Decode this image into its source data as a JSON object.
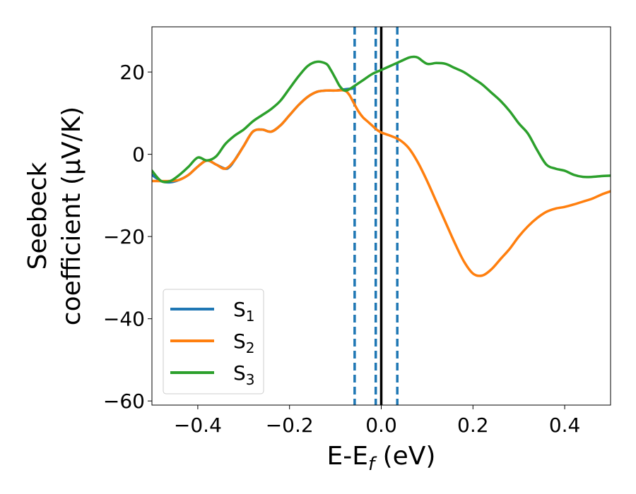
{
  "chart_data": {
    "type": "line",
    "xlabel": "E-E",
    "xlabel_sub": "f",
    "xlabel_suffix": " (eV)",
    "ylabel_line1": "Seebeck",
    "ylabel_line2": "coefficient  (μV/K)",
    "xlim": [
      -0.5,
      0.5
    ],
    "ylim": [
      -61,
      31
    ],
    "xticks": [
      -0.4,
      -0.2,
      0.0,
      0.2,
      0.4
    ],
    "xtick_labels": [
      "−0.4",
      "−0.2",
      "0.0",
      "0.2",
      "0.4"
    ],
    "yticks": [
      -60,
      -40,
      -20,
      0,
      20
    ],
    "ytick_labels": [
      "−60",
      "−40",
      "−20",
      "0",
      "20"
    ],
    "grid": false,
    "legend_position": "lower-left",
    "vlines_dashed": [
      -0.058,
      -0.012,
      0.035
    ],
    "vline_solid": 0.0,
    "vline_dashed_color": "#1f77b4",
    "vline_solid_color": "#000000",
    "series": [
      {
        "name": "S",
        "sub": "1",
        "color": "#1f77b4",
        "x": [
          -0.5,
          -0.48,
          -0.46,
          -0.44,
          -0.42,
          -0.4,
          -0.38,
          -0.36,
          -0.34,
          -0.33,
          -0.32,
          -0.3,
          -0.28,
          -0.26,
          -0.24,
          -0.22,
          -0.2,
          -0.18,
          -0.16,
          -0.14,
          -0.12,
          -0.1,
          -0.08,
          -0.06
        ],
        "y": [
          -5,
          -6.5,
          -6.8,
          -6.2,
          -5,
          -3,
          -1.5,
          -2.5,
          -3.5,
          -3,
          -1.5,
          2,
          5.5,
          6,
          5.5,
          7,
          9.5,
          12,
          14,
          15.2,
          15.5,
          15.5,
          15.8,
          16
        ]
      },
      {
        "name": "S",
        "sub": "2",
        "color": "#ff7f0e",
        "x": [
          -0.5,
          -0.46,
          -0.44,
          -0.42,
          -0.4,
          -0.38,
          -0.36,
          -0.34,
          -0.32,
          -0.3,
          -0.28,
          -0.26,
          -0.24,
          -0.22,
          -0.2,
          -0.18,
          -0.16,
          -0.14,
          -0.12,
          -0.1,
          -0.08,
          -0.07,
          -0.06,
          -0.05,
          -0.04,
          -0.03,
          -0.02,
          -0.01,
          0.0,
          0.02,
          0.04,
          0.06,
          0.08,
          0.1,
          0.12,
          0.14,
          0.16,
          0.18,
          0.2,
          0.22,
          0.24,
          0.26,
          0.28,
          0.3,
          0.32,
          0.34,
          0.36,
          0.38,
          0.4,
          0.42,
          0.44,
          0.46,
          0.48,
          0.5
        ],
        "y": [
          -6.5,
          -6.5,
          -6.2,
          -5,
          -3,
          -1.5,
          -2.5,
          -3.5,
          -1.5,
          2,
          5.5,
          6,
          5.5,
          7,
          9.5,
          12,
          14,
          15.2,
          15.5,
          15.5,
          15.5,
          14.5,
          12.5,
          10.5,
          9,
          8,
          7,
          6,
          5.3,
          4.5,
          3.5,
          1.5,
          -2,
          -6.5,
          -11.5,
          -16.5,
          -21.5,
          -26,
          -29,
          -29.5,
          -28,
          -25.5,
          -23,
          -20,
          -17.5,
          -15.5,
          -14,
          -13.2,
          -12.8,
          -12.2,
          -11.5,
          -10.8,
          -9.8,
          -9
        ]
      },
      {
        "name": "S",
        "sub": "3",
        "color": "#2ca02c",
        "x": [
          -0.5,
          -0.48,
          -0.46,
          -0.44,
          -0.42,
          -0.4,
          -0.38,
          -0.36,
          -0.34,
          -0.32,
          -0.3,
          -0.28,
          -0.26,
          -0.24,
          -0.22,
          -0.2,
          -0.18,
          -0.16,
          -0.14,
          -0.12,
          -0.11,
          -0.1,
          -0.09,
          -0.08,
          -0.07,
          -0.06,
          -0.04,
          -0.02,
          0.0,
          0.02,
          0.04,
          0.06,
          0.07,
          0.08,
          0.1,
          0.12,
          0.14,
          0.16,
          0.18,
          0.2,
          0.22,
          0.24,
          0.26,
          0.28,
          0.3,
          0.32,
          0.34,
          0.36,
          0.38,
          0.4,
          0.42,
          0.44,
          0.46,
          0.48,
          0.5
        ],
        "y": [
          -4,
          -6.5,
          -6.5,
          -5,
          -3,
          -0.8,
          -1.5,
          -0.5,
          2.5,
          4.5,
          6,
          8,
          9.5,
          11,
          13,
          16,
          19,
          21.5,
          22.5,
          22,
          20.5,
          18.5,
          16.5,
          15.5,
          15.8,
          16.5,
          18,
          19.5,
          20.5,
          21.5,
          22.5,
          23.5,
          23.7,
          23.5,
          22,
          22.2,
          22,
          21,
          20,
          18.5,
          17,
          15,
          13,
          10.5,
          7.5,
          5,
          1,
          -2.5,
          -3.5,
          -4,
          -5,
          -5.5,
          -5.5,
          -5.3,
          -5.2
        ]
      }
    ]
  }
}
